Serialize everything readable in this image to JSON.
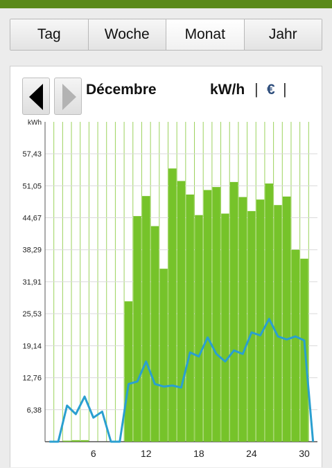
{
  "tabs": [
    {
      "label": "Tag"
    },
    {
      "label": "Woche"
    },
    {
      "label": "Monat",
      "active": true
    },
    {
      "label": "Jahr"
    }
  ],
  "panel": {
    "title": "Décembre",
    "unit_kwh": "kW/h",
    "unit_euro": "€",
    "separator": "|"
  },
  "colors": {
    "bars": "#76c32a",
    "line": "#2a9fd0",
    "grid": "#9bd25c",
    "header": "#5b8a1a"
  },
  "chart_data": {
    "type": "bar",
    "ylabel": "kWh",
    "ylim": [
      0,
      63.8
    ],
    "yticks": [
      "6,38",
      "12,76",
      "19,14",
      "25,53",
      "31,91",
      "38,29",
      "44,67",
      "51,05",
      "57,43"
    ],
    "ytick_values": [
      6.38,
      12.76,
      19.14,
      25.53,
      31.91,
      38.29,
      44.67,
      51.05,
      57.43
    ],
    "xticks": [
      6,
      12,
      18,
      24,
      30
    ],
    "x_range": [
      0.5,
      31.5
    ],
    "days": [
      1,
      2,
      3,
      4,
      5,
      6,
      7,
      8,
      9,
      10,
      11,
      12,
      13,
      14,
      15,
      16,
      17,
      18,
      19,
      20,
      21,
      22,
      23,
      24,
      25,
      26,
      27,
      28,
      29,
      30,
      31
    ],
    "series": [
      {
        "kind": "bar",
        "values": [
          0,
          0,
          0.2,
          0.3,
          0.3,
          0,
          0,
          0,
          0,
          28,
          45,
          49,
          43,
          34.5,
          54.5,
          52,
          49.3,
          45.2,
          50.2,
          50.8,
          45.5,
          51.8,
          48.8,
          46,
          48.3,
          51.5,
          47.2,
          48.9,
          38.3,
          36.5,
          0
        ]
      },
      {
        "kind": "line",
        "values": [
          0,
          0,
          7.2,
          5.5,
          9,
          4.8,
          6,
          0,
          0,
          11.5,
          12,
          16,
          11.5,
          11,
          11.2,
          10.8,
          17.8,
          17,
          20.8,
          17.5,
          16,
          18.2,
          17.5,
          21.8,
          21.2,
          24.5,
          21,
          20.4,
          21,
          20.2,
          0
        ]
      }
    ]
  }
}
